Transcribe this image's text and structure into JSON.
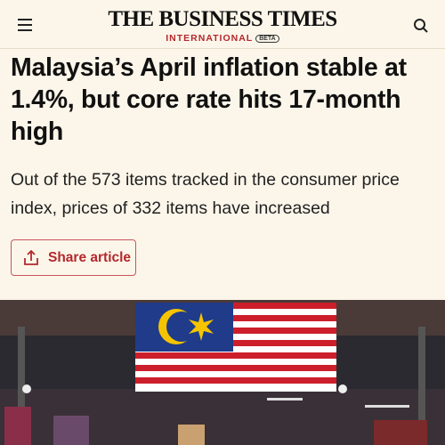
{
  "header": {
    "logo": "THE BUSINESS TIMES",
    "edition": "INTERNATIONAL",
    "badge": "BETA"
  },
  "article": {
    "title": "Malaysia’s April inflation stable at 1.4%, but core rate hits 17-month high",
    "subtitle": "Out of the 573 items tracked in the consumer price index, prices of 332 items have increased",
    "share_button": "Share article"
  }
}
